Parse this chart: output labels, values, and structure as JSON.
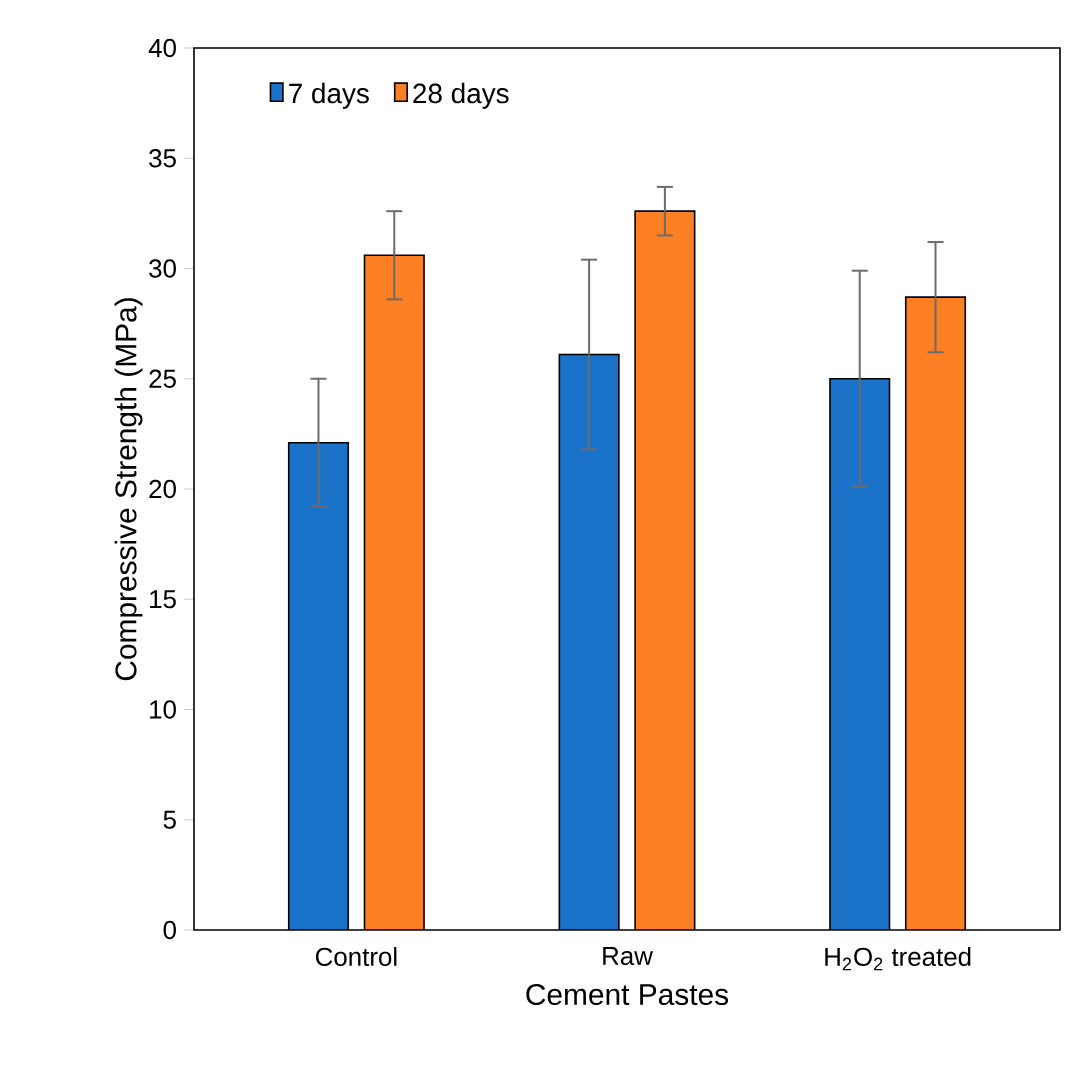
{
  "chart_data": {
    "type": "bar",
    "xlabel": "Cement Pastes",
    "ylabel": "Compressive Strength (MPa)",
    "categories": [
      "Control",
      "Raw",
      "H$_{2}$O$_{2}$ treated"
    ],
    "series": [
      {
        "name": "7 days",
        "color": "#1a73c8",
        "values": [
          22.1,
          26.1,
          25.0
        ],
        "errors": [
          2.9,
          4.3,
          4.9
        ]
      },
      {
        "name": "28 days",
        "color": "#fd7f23",
        "values": [
          30.6,
          32.6,
          28.7
        ],
        "errors": [
          2.0,
          1.1,
          2.5
        ]
      }
    ],
    "ylim": [
      0,
      40
    ],
    "yticks": [
      0,
      5,
      10,
      15,
      20,
      25,
      30,
      35,
      40
    ],
    "grid": false,
    "legend": "top left"
  }
}
